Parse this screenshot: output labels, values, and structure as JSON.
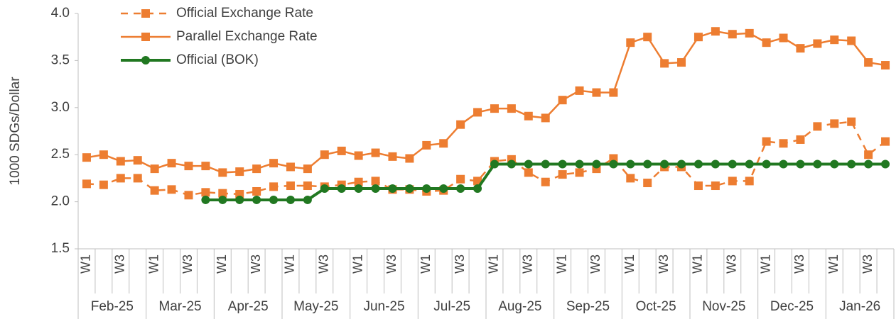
{
  "chart_data": {
    "type": "line",
    "y_label": "1000 SDGs/Dollar",
    "categories": [
      "W1",
      null,
      "W3",
      null,
      "W1",
      null,
      "W3",
      null,
      "W1",
      null,
      "W3",
      null,
      "W1",
      null,
      "W3",
      null,
      "W1",
      null,
      "W3",
      null,
      "W1",
      null,
      "W3",
      null,
      "W1",
      null,
      "W3",
      null,
      "W1",
      null,
      "W3",
      null,
      "W1",
      null,
      "W3",
      null,
      "W1",
      null,
      "W3",
      null,
      "W1",
      null,
      "W3",
      null,
      "W1",
      null,
      "W3",
      null
    ],
    "months": [
      "Feb-25",
      "Mar-25",
      "Apr-25",
      "May-25",
      "Jun-25",
      "Jul-25",
      "Aug-25",
      "Sep-25",
      "Oct-25",
      "Nov-25",
      "Dec-25",
      "Jan-26"
    ],
    "series": [
      {
        "name": "Official Exchange Rate",
        "color": "#ED7D31",
        "line_style": "dashed",
        "marker": "square",
        "values": [
          2.19,
          2.18,
          2.25,
          2.25,
          2.12,
          2.13,
          2.07,
          2.1,
          2.09,
          2.08,
          2.11,
          2.16,
          2.17,
          2.17,
          2.16,
          2.18,
          2.21,
          2.22,
          2.13,
          2.13,
          2.11,
          2.12,
          2.24,
          2.22,
          2.43,
          2.45,
          2.31,
          2.21,
          2.29,
          2.31,
          2.35,
          2.46,
          2.25,
          2.2,
          2.37,
          2.37,
          2.17,
          2.17,
          2.22,
          2.22,
          2.64,
          2.62,
          2.66,
          2.8,
          2.83,
          2.85,
          2.5,
          2.64
        ]
      },
      {
        "name": "Parallel Exchange Rate",
        "color": "#ED7D31",
        "line_style": "solid",
        "marker": "square",
        "values": [
          2.47,
          2.5,
          2.43,
          2.44,
          2.35,
          2.41,
          2.38,
          2.38,
          2.31,
          2.32,
          2.35,
          2.41,
          2.37,
          2.35,
          2.5,
          2.54,
          2.49,
          2.52,
          2.48,
          2.46,
          2.6,
          2.62,
          2.82,
          2.95,
          2.99,
          2.99,
          2.91,
          2.89,
          3.08,
          3.18,
          3.16,
          3.16,
          3.69,
          3.75,
          3.47,
          3.48,
          3.75,
          3.81,
          3.78,
          3.79,
          3.69,
          3.74,
          3.63,
          3.68,
          3.72,
          3.71,
          3.48,
          3.45
        ]
      },
      {
        "name": "Official (BOK)",
        "color": "#217821",
        "line_style": "solid",
        "marker": "circle",
        "values": [
          null,
          null,
          null,
          null,
          null,
          null,
          null,
          2.02,
          2.02,
          2.02,
          2.02,
          2.02,
          2.02,
          2.02,
          2.14,
          2.14,
          2.14,
          2.14,
          2.14,
          2.14,
          2.14,
          2.14,
          2.14,
          2.14,
          2.4,
          2.4,
          2.4,
          2.4,
          2.4,
          2.4,
          2.4,
          2.4,
          2.4,
          2.4,
          2.4,
          2.4,
          2.4,
          2.4,
          2.4,
          2.4,
          2.4,
          2.4,
          2.4,
          2.4,
          2.4,
          2.4,
          2.4,
          2.4
        ]
      }
    ],
    "ylim": [
      1.5,
      4.0
    ],
    "yticks": [
      1.5,
      {
        "value": 2.0,
        "label": "2.0"
      },
      2.5,
      {
        "value": 3.0,
        "label": "3.0"
      },
      3.5,
      {
        "value": 4.0,
        "label": "4.0"
      }
    ],
    "grid": false
  }
}
